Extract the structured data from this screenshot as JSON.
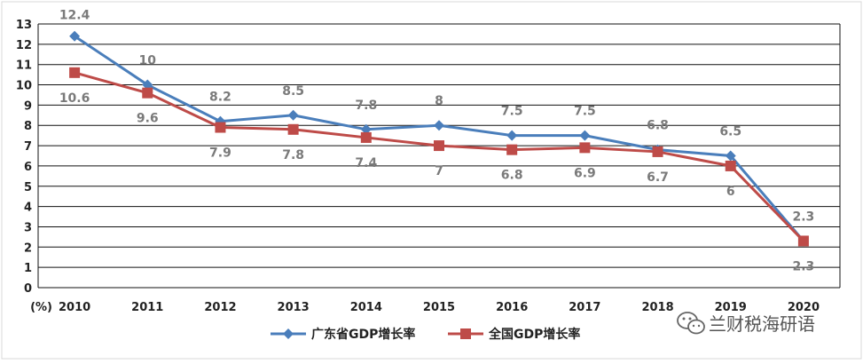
{
  "chart_data": {
    "type": "line",
    "x": [
      "2010",
      "2011",
      "2012",
      "2013",
      "2014",
      "2015",
      "2016",
      "2017",
      "2018",
      "2019",
      "2020"
    ],
    "ylim": [
      0,
      13
    ],
    "yticks": [
      0,
      1,
      2,
      3,
      4,
      5,
      6,
      7,
      8,
      9,
      10,
      11,
      12,
      13
    ],
    "unit_label": "(%)",
    "grid": true,
    "legend_position": "bottom",
    "series": [
      {
        "name": "广东省GDP增长率",
        "color": "#4a7ebb",
        "marker": "diamond",
        "values": [
          12.4,
          10,
          8.2,
          8.5,
          7.8,
          8,
          7.5,
          7.5,
          6.8,
          6.5,
          2.3
        ],
        "labels": [
          "12.4",
          "10",
          "8.2",
          "8.5",
          "7.8",
          "8",
          "7.5",
          "7.5",
          "6.8",
          "6.5",
          "2.3"
        ]
      },
      {
        "name": "全国GDP增长率",
        "color": "#be4b48",
        "marker": "square",
        "values": [
          10.6,
          9.6,
          7.9,
          7.8,
          7.4,
          7,
          6.8,
          6.9,
          6.7,
          6,
          2.3
        ],
        "labels": [
          "10.6",
          "9.6",
          "7.9",
          "7.8",
          "7.4",
          "7",
          "6.8",
          "6.9",
          "6.7",
          "6",
          "2.3"
        ]
      }
    ]
  },
  "watermark": {
    "text": "兰财税海研语",
    "icon": "wechat-icon"
  }
}
